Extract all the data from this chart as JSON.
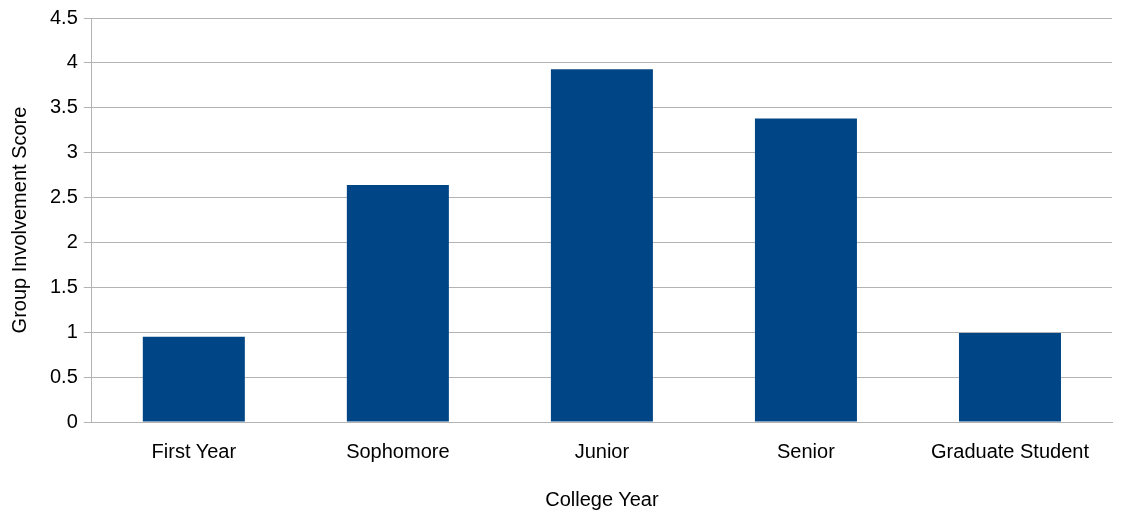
{
  "chart_data": {
    "type": "bar",
    "xlabel": "College Year",
    "ylabel": "Group Involvement Score",
    "categories": [
      "First Year",
      "Sophomore",
      "Junior",
      "Senior",
      "Graduate Student"
    ],
    "values": [
      0.95,
      2.64,
      3.93,
      3.38,
      0.99
    ],
    "color": "#004586",
    "ylim": [
      0,
      4.5
    ],
    "yticks": [
      0,
      0.5,
      1,
      1.5,
      2,
      2.5,
      3,
      3.5,
      4,
      4.5
    ],
    "grid": "y",
    "legend": false
  }
}
